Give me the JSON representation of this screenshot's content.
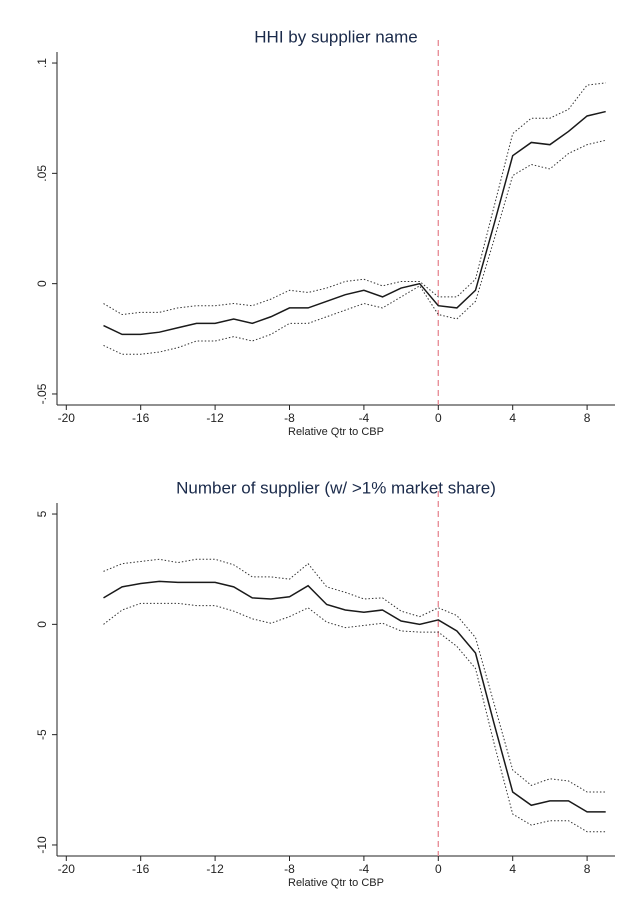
{
  "chart_data": [
    {
      "type": "line",
      "title": "HHI by supplier name",
      "x_label": "Relative Qtr to CBP",
      "x": [
        -18,
        -17,
        -16,
        -15,
        -14,
        -13,
        -12,
        -11,
        -10,
        -9,
        -8,
        -7,
        -6,
        -5,
        -4,
        -3,
        -2,
        -1,
        0,
        1,
        2,
        3,
        4,
        5,
        6,
        7,
        8,
        9
      ],
      "series": [
        {
          "color": "#1a1a1a",
          "style": "solid",
          "values": [
            -0.019,
            -0.023,
            -0.023,
            -0.022,
            -0.02,
            -0.018,
            -0.018,
            -0.016,
            -0.018,
            -0.015,
            -0.011,
            -0.011,
            -0.008,
            -0.005,
            -0.003,
            -0.006,
            -0.002,
            0,
            -0.01,
            -0.011,
            -0.003,
            0.027,
            0.058,
            0.064,
            0.063,
            0.069,
            0.076,
            0.078
          ]
        },
        {
          "color": "#333333",
          "style": "dotted",
          "values": [
            -0.009,
            -0.014,
            -0.013,
            -0.013,
            -0.011,
            -0.01,
            -0.01,
            -0.009,
            -0.01,
            -0.007,
            -0.003,
            -0.004,
            -0.002,
            0.001,
            0.002,
            -0.001,
            0.001,
            0.001,
            -0.006,
            -0.006,
            0.002,
            0.035,
            0.068,
            0.075,
            0.075,
            0.079,
            0.09,
            0.091
          ]
        },
        {
          "color": "#333333",
          "style": "dotted",
          "values": [
            -0.028,
            -0.032,
            -0.032,
            -0.031,
            -0.029,
            -0.026,
            -0.026,
            -0.024,
            -0.026,
            -0.023,
            -0.018,
            -0.018,
            -0.015,
            -0.012,
            -0.009,
            -0.011,
            -0.006,
            -0.001,
            -0.014,
            -0.016,
            -0.008,
            0.02,
            0.049,
            0.054,
            0.052,
            0.059,
            0.063,
            0.065
          ]
        }
      ],
      "xlim": [
        -20.5,
        9.5
      ],
      "xticks": [
        -20,
        -16,
        -12,
        -8,
        -4,
        0,
        4,
        8
      ],
      "ylim": [
        -0.055,
        0.105
      ],
      "yticks": [
        {
          "value": -0.05,
          "label": "-.05"
        },
        0,
        {
          "value": 0.05,
          "label": ".05"
        },
        {
          "value": 0.1,
          "label": ".1"
        }
      ],
      "vline": 0,
      "vline_color": "#e8909a"
    },
    {
      "type": "line",
      "title": "Number of supplier (w/ >1% market share)",
      "x_label": "Relative Qtr to CBP",
      "x": [
        -18,
        -17,
        -16,
        -15,
        -14,
        -13,
        -12,
        -11,
        -10,
        -9,
        -8,
        -7,
        -6,
        -5,
        -4,
        -3,
        -2,
        -1,
        0,
        1,
        2,
        3,
        4,
        5,
        6,
        7,
        8,
        9
      ],
      "series": [
        {
          "color": "#1a1a1a",
          "style": "solid",
          "values": [
            1.2,
            1.7,
            1.85,
            1.95,
            1.9,
            1.9,
            1.9,
            1.7,
            1.2,
            1.15,
            1.25,
            1.75,
            0.9,
            0.65,
            0.55,
            0.65,
            0.15,
            0,
            0.2,
            -0.3,
            -1.3,
            -4.5,
            -7.6,
            -8.2,
            -8,
            -8,
            -8.5,
            -8.5
          ]
        },
        {
          "color": "#333333",
          "style": "dotted",
          "values": [
            2.4,
            2.75,
            2.85,
            2.95,
            2.8,
            2.95,
            2.95,
            2.7,
            2.15,
            2.15,
            2.05,
            2.75,
            1.7,
            1.45,
            1.15,
            1.2,
            0.6,
            0.35,
            0.75,
            0.4,
            -0.6,
            -3.6,
            -6.6,
            -7.3,
            -7,
            -7.1,
            -7.6,
            -7.6
          ]
        },
        {
          "color": "#333333",
          "style": "dotted",
          "values": [
            0,
            0.65,
            0.95,
            0.95,
            0.95,
            0.85,
            0.85,
            0.6,
            0.25,
            0.05,
            0.35,
            0.75,
            0.1,
            -0.15,
            -0.05,
            0.05,
            -0.3,
            -0.35,
            -0.35,
            -1,
            -2,
            -5.4,
            -8.6,
            -9.1,
            -8.9,
            -8.9,
            -9.4,
            -9.4
          ]
        }
      ],
      "xlim": [
        -20.5,
        9.5
      ],
      "xticks": [
        -20,
        -16,
        -12,
        -8,
        -4,
        0,
        4,
        8
      ],
      "ylim": [
        -10.5,
        5.5
      ],
      "yticks": [
        -10,
        -5,
        0,
        5
      ],
      "vline": 0,
      "vline_color": "#e8909a"
    }
  ]
}
